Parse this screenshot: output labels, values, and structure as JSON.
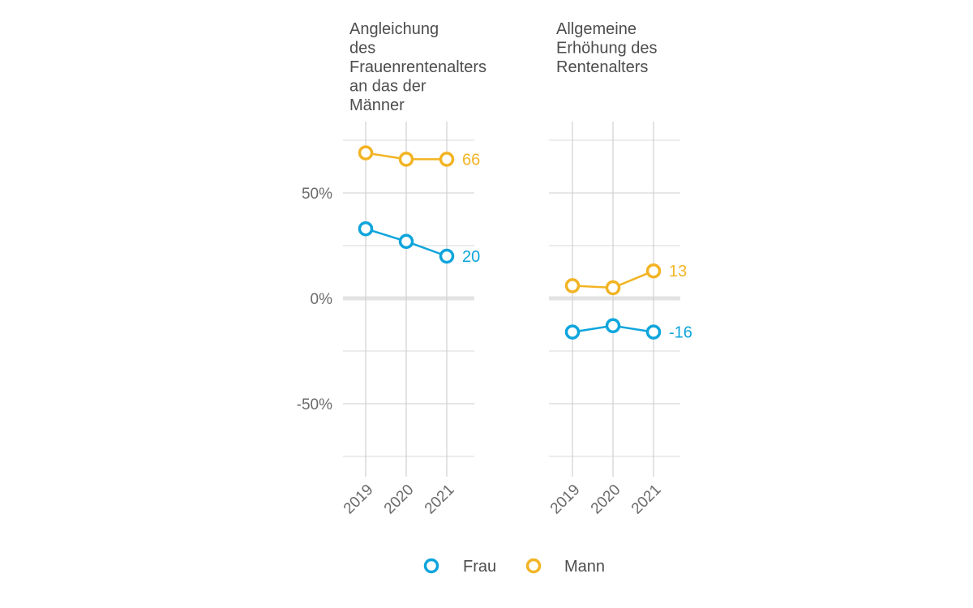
{
  "chart_data": {
    "type": "line",
    "colors": {
      "Frau": "#0ea5dc",
      "Mann": "#f2b424"
    },
    "ylim": [
      -75,
      75
    ],
    "yticks": [
      -50,
      0,
      50
    ],
    "ytick_labels": [
      "-50%",
      "0%",
      "50%"
    ],
    "grid": true,
    "legend": "bottom",
    "x": [
      "2019",
      "2020",
      "2021"
    ],
    "legend_entries": [
      "Frau",
      "Mann"
    ],
    "facets": [
      {
        "title_lines": [
          "Angleichung",
          "des",
          "Frauenrentenalters",
          "an das der",
          "Männer"
        ],
        "series": [
          {
            "name": "Mann",
            "values": [
              69,
              66,
              66
            ],
            "end_label": "66"
          },
          {
            "name": "Frau",
            "values": [
              33,
              27,
              20
            ],
            "end_label": "20"
          }
        ]
      },
      {
        "title_lines": [
          "Allgemeine",
          "Erhöhung des",
          "Rentenalters"
        ],
        "series": [
          {
            "name": "Mann",
            "values": [
              6,
              5,
              13
            ],
            "end_label": "13"
          },
          {
            "name": "Frau",
            "values": [
              -16,
              -13,
              -16
            ],
            "end_label": "-16"
          }
        ]
      }
    ]
  }
}
